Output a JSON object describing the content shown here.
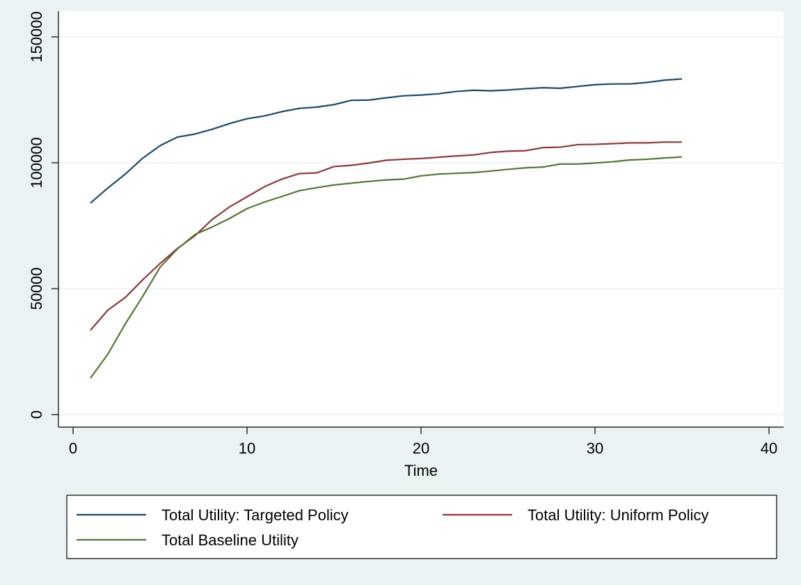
{
  "chart_data": {
    "type": "line",
    "xlabel": "Time",
    "ylabel": "",
    "xlim": [
      0,
      40
    ],
    "ylim": [
      0,
      150000
    ],
    "xticks": [
      0,
      10,
      20,
      30,
      40
    ],
    "yticks": [
      0,
      50000,
      100000,
      150000
    ],
    "grid": "horizontal",
    "legend_position": "bottom",
    "x": [
      1,
      2,
      3,
      4,
      5,
      6,
      7,
      8,
      9,
      10,
      11,
      12,
      13,
      14,
      15,
      16,
      17,
      18,
      19,
      20,
      21,
      22,
      23,
      24,
      25,
      26,
      27,
      28,
      29,
      30,
      31,
      32,
      33,
      34,
      35
    ],
    "series": [
      {
        "name": "Total Utility: Targeted Policy",
        "color": "#1a476f",
        "values": [
          84000,
          90000,
          95500,
          101800,
          106800,
          110200,
          111400,
          113300,
          115600,
          117500,
          118600,
          120300,
          121600,
          122100,
          123100,
          124800,
          124900,
          125800,
          126600,
          126900,
          127400,
          128300,
          128800,
          128600,
          128900,
          129400,
          129800,
          129600,
          130300,
          131000,
          131300,
          131300,
          131900,
          132800,
          133300
        ]
      },
      {
        "name": "Total Utility: Uniform Policy",
        "color": "#90353b",
        "values": [
          33500,
          41500,
          46500,
          53500,
          60000,
          66000,
          71000,
          77500,
          82500,
          86500,
          90500,
          93500,
          95700,
          96000,
          98500,
          99000,
          99900,
          101000,
          101400,
          101700,
          102200,
          102700,
          103100,
          104100,
          104600,
          104800,
          106000,
          106200,
          107200,
          107300,
          107600,
          107900,
          107900,
          108200,
          108200
        ]
      },
      {
        "name": "Total Baseline Utility",
        "color": "#55752f",
        "values": [
          14500,
          24000,
          36000,
          46900,
          58500,
          65800,
          71500,
          74500,
          77900,
          81800,
          84400,
          86600,
          88900,
          90100,
          91200,
          91900,
          92600,
          93200,
          93500,
          94800,
          95500,
          95800,
          96100,
          96700,
          97400,
          98000,
          98300,
          99500,
          99500,
          99900,
          100400,
          101100,
          101400,
          101900,
          102300
        ]
      }
    ]
  }
}
